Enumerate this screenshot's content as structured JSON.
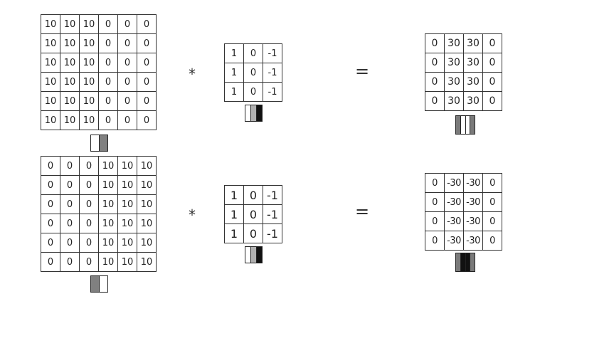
{
  "examples": [
    {
      "input": [
        [
          "10",
          "10",
          "10",
          "0",
          "0",
          "0"
        ],
        [
          "10",
          "10",
          "10",
          "0",
          "0",
          "0"
        ],
        [
          "10",
          "10",
          "10",
          "0",
          "0",
          "0"
        ],
        [
          "10",
          "10",
          "10",
          "0",
          "0",
          "0"
        ],
        [
          "10",
          "10",
          "10",
          "0",
          "0",
          "0"
        ],
        [
          "10",
          "10",
          "10",
          "0",
          "0",
          "0"
        ]
      ],
      "input_icon": [
        "#ffffff",
        "#808080"
      ],
      "operator": "*",
      "kernel": [
        [
          "1",
          "0",
          "-1"
        ],
        [
          "1",
          "0",
          "-1"
        ],
        [
          "1",
          "0",
          "-1"
        ]
      ],
      "kernel_icon": [
        "#ffffff",
        "#b0b0b0",
        "#111111"
      ],
      "equals": "=",
      "output": [
        [
          "0",
          "30",
          "30",
          "0"
        ],
        [
          "0",
          "30",
          "30",
          "0"
        ],
        [
          "0",
          "30",
          "30",
          "0"
        ],
        [
          "0",
          "30",
          "30",
          "0"
        ]
      ],
      "output_icon": [
        "#7a7a7a",
        "#ffffff",
        "#ffffff",
        "#7a7a7a"
      ]
    },
    {
      "input": [
        [
          "0",
          "0",
          "0",
          "10",
          "10",
          "10"
        ],
        [
          "0",
          "0",
          "0",
          "10",
          "10",
          "10"
        ],
        [
          "0",
          "0",
          "0",
          "10",
          "10",
          "10"
        ],
        [
          "0",
          "0",
          "0",
          "10",
          "10",
          "10"
        ],
        [
          "0",
          "0",
          "0",
          "10",
          "10",
          "10"
        ],
        [
          "0",
          "0",
          "0",
          "10",
          "10",
          "10"
        ]
      ],
      "input_icon": [
        "#808080",
        "#ffffff"
      ],
      "operator": "*",
      "kernel": [
        [
          "1",
          "0",
          "-1"
        ],
        [
          "1",
          "0",
          "-1"
        ],
        [
          "1",
          "0",
          "-1"
        ]
      ],
      "kernel_icon": [
        "#ffffff",
        "#b0b0b0",
        "#111111"
      ],
      "equals": "=",
      "output": [
        [
          "0",
          "-30",
          "-30",
          "0"
        ],
        [
          "0",
          "-30",
          "-30",
          "0"
        ],
        [
          "0",
          "-30",
          "-30",
          "0"
        ],
        [
          "0",
          "-30",
          "-30",
          "0"
        ]
      ],
      "output_icon": [
        "#7a7a7a",
        "#111111",
        "#111111",
        "#7a7a7a"
      ]
    }
  ]
}
